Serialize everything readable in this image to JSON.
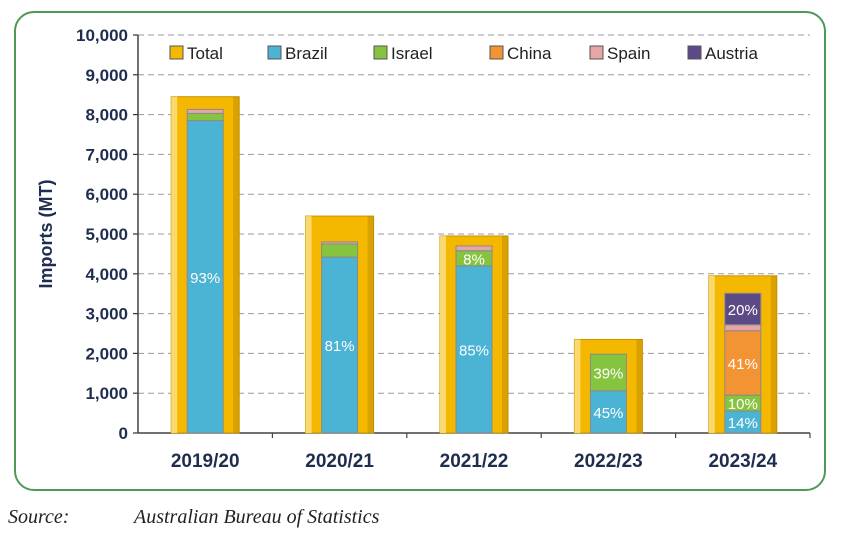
{
  "chart_data": {
    "type": "bar",
    "stacked": true,
    "ylabel": "Imports (MT)",
    "xlabel": "",
    "ylim": [
      0,
      10000
    ],
    "yticks": [
      "0",
      "1,000",
      "2,000",
      "3,000",
      "4,000",
      "5,000",
      "6,000",
      "7,000",
      "8,000",
      "9,000",
      "10,000"
    ],
    "grid": "horizontal dashed",
    "legend_position": "top",
    "categories": [
      "2019/20",
      "2020/21",
      "2021/22",
      "2022/23",
      "2023/24"
    ],
    "total": {
      "name": "Total",
      "color": "#f5b800",
      "values": [
        8450,
        5450,
        4950,
        2350,
        3950
      ]
    },
    "series": [
      {
        "name": "Brazil",
        "color": "#4bb3d3",
        "values": [
          7850,
          4420,
          4200,
          1060,
          550
        ],
        "labels": [
          "93%",
          "81%",
          "85%",
          "45%",
          "14%"
        ]
      },
      {
        "name": "Israel",
        "color": "#86c440",
        "values": [
          180,
          330,
          380,
          920,
          400
        ],
        "labels": [
          "",
          "",
          "8%",
          "39%",
          "10%"
        ]
      },
      {
        "name": "China",
        "color": "#f39434",
        "values": [
          0,
          0,
          0,
          0,
          1620
        ],
        "labels": [
          "",
          "",
          "",
          "",
          "41%"
        ]
      },
      {
        "name": "Spain",
        "color": "#e7a6a3",
        "values": [
          100,
          50,
          120,
          0,
          150
        ],
        "labels": [
          "",
          "",
          "",
          "",
          ""
        ]
      },
      {
        "name": "Austria",
        "color": "#5b4a86",
        "values": [
          0,
          0,
          0,
          0,
          790
        ],
        "labels": [
          "",
          "",
          "",
          "",
          "20%"
        ]
      }
    ]
  },
  "source": {
    "label": "Source:",
    "text": "Australian Bureau of Statistics"
  }
}
